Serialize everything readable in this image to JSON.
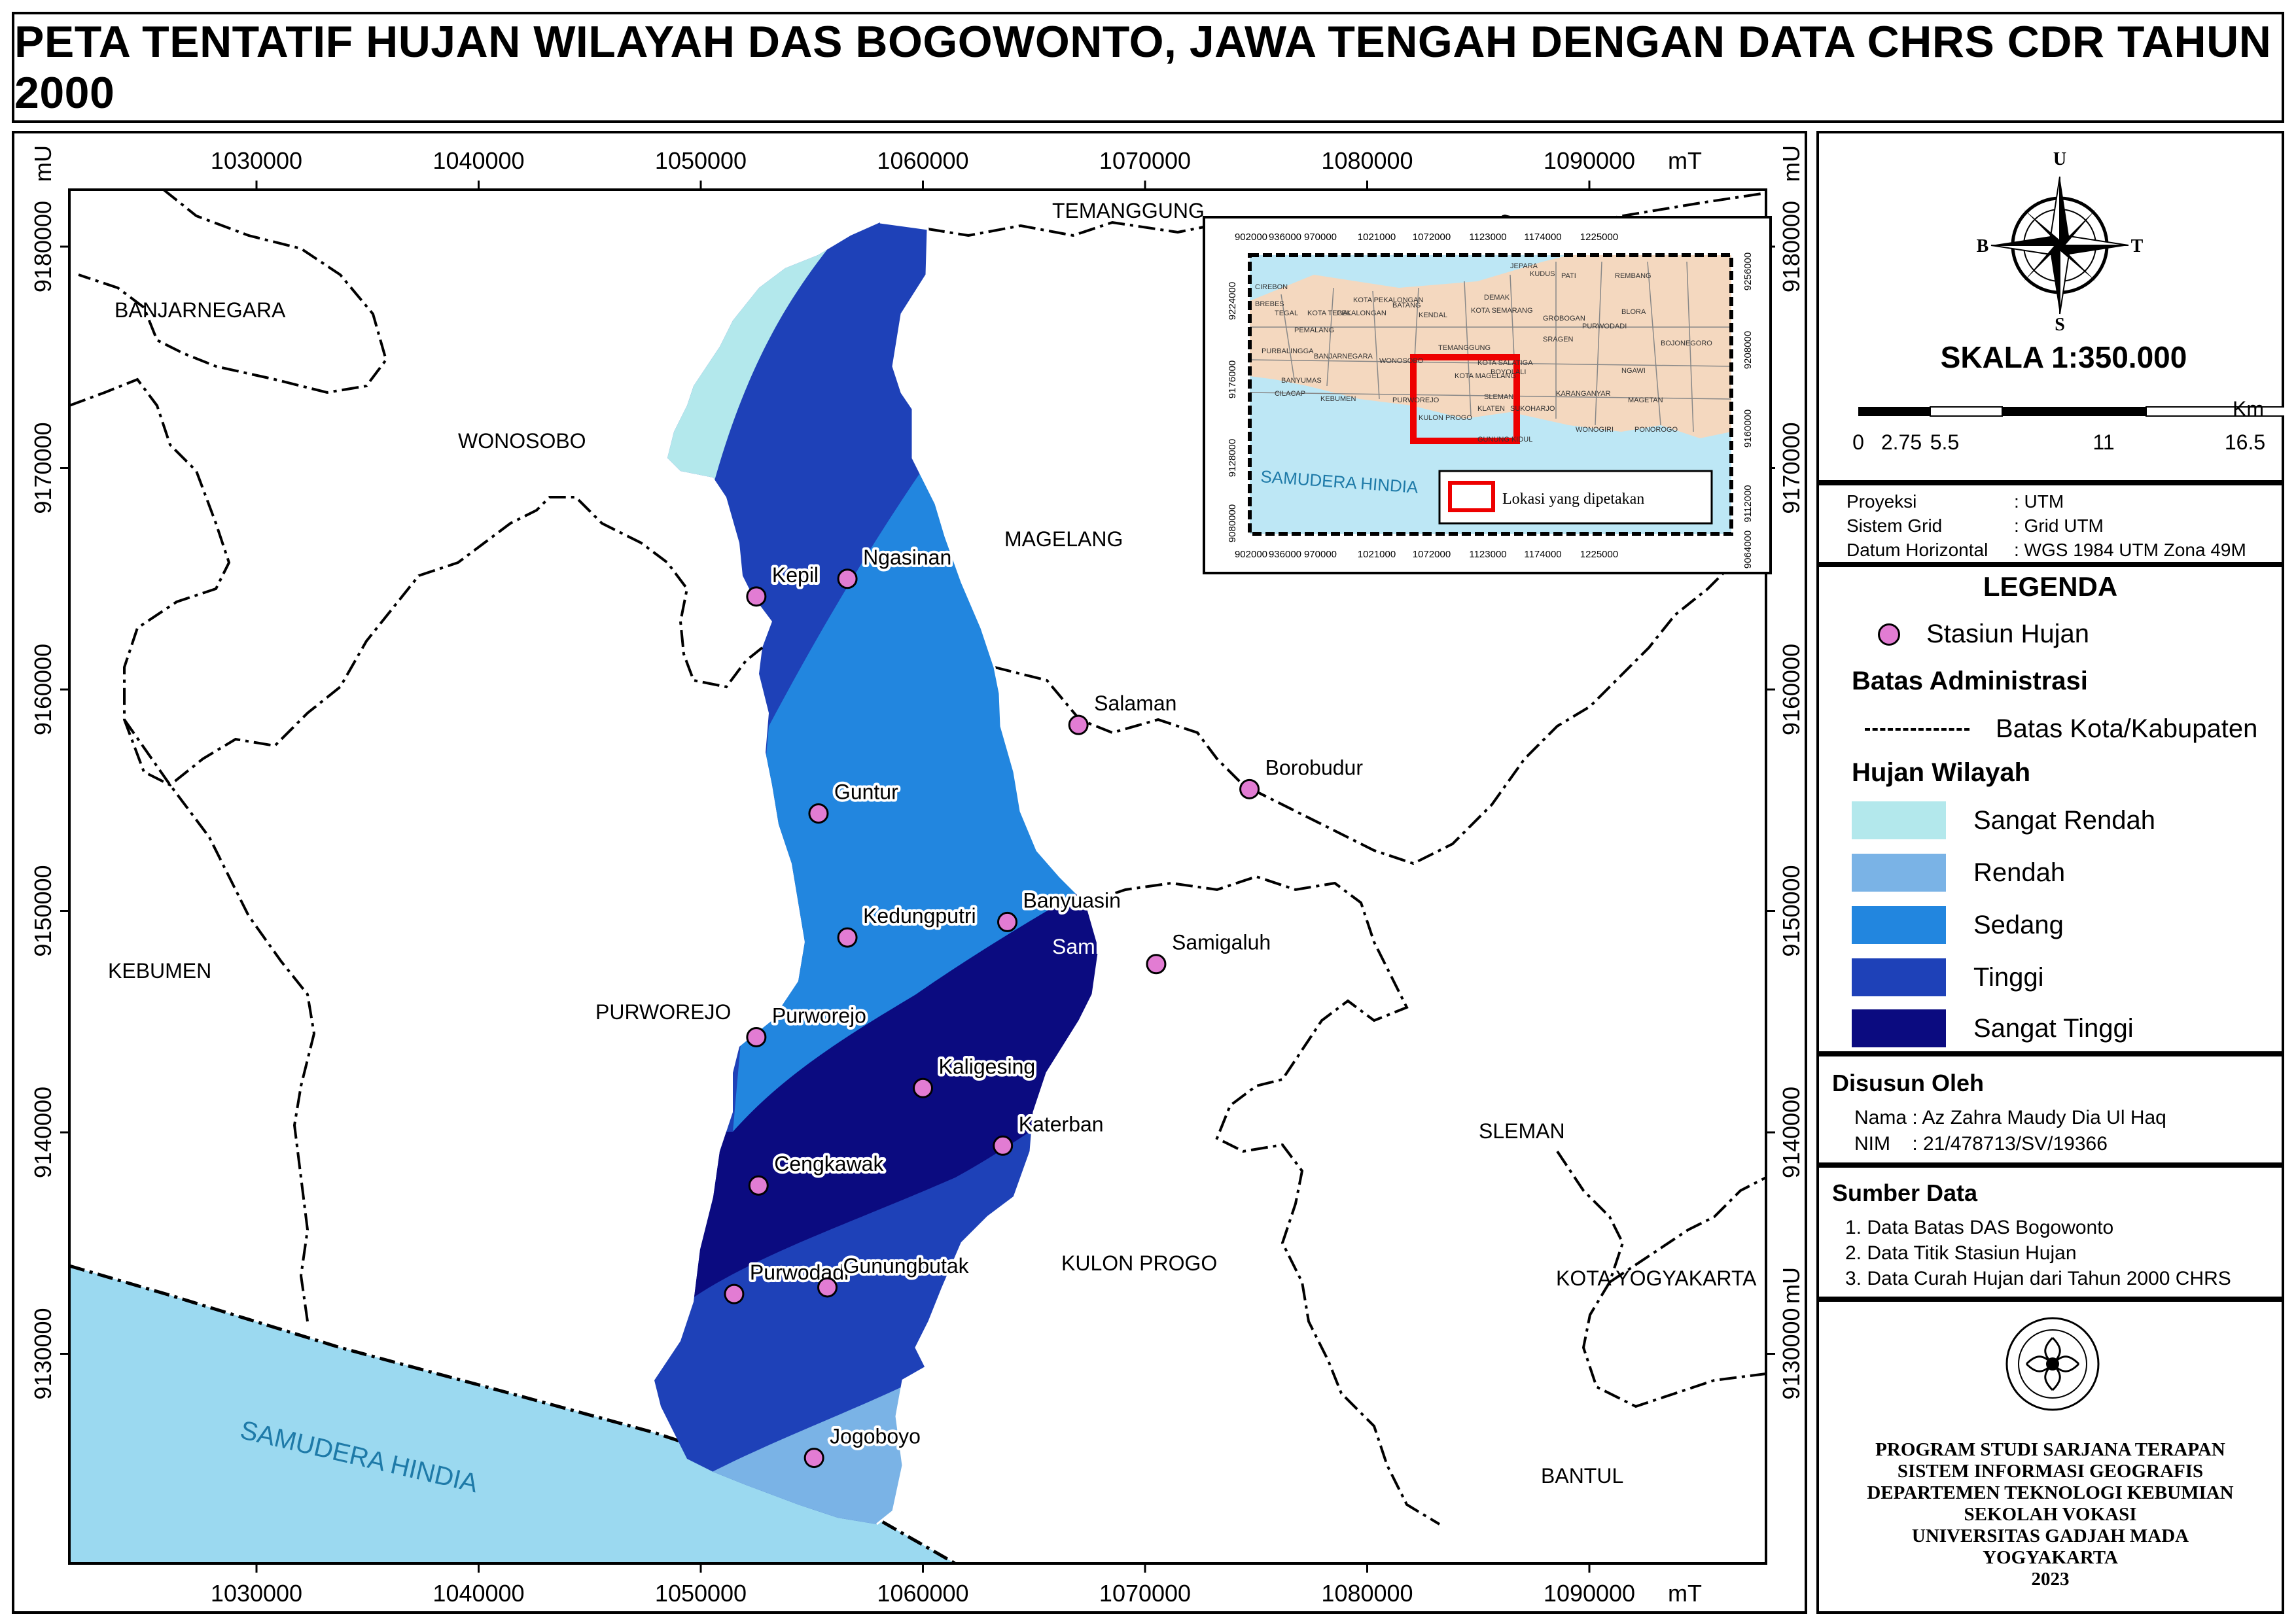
{
  "title": "PETA TENTATIF HUJAN WILAYAH DAS BOGOWONTO, JAWA TENGAH DENGAN DATA CHRS CDR TAHUN 2000",
  "map": {
    "x_ticks": [
      "1030000",
      "1040000",
      "1050000",
      "1060000",
      "1070000",
      "1080000",
      "1090000"
    ],
    "x_unit": "mT",
    "y_ticks": [
      "9180000",
      "9170000",
      "9160000",
      "9150000",
      "9140000",
      "9130000"
    ],
    "y_unit": "mU",
    "regions": {
      "temanggung": "TEMANGGUNG",
      "banjarnegara": "BANJARNEGARA",
      "wonosobo": "WONOSOBO",
      "magelang": "MAGELANG",
      "kebumen": "KEBUMEN",
      "purworejo": "PURWOREJO",
      "sleman": "SLEMAN",
      "kulon_progo": "KULON PROGO",
      "kota_yogyakarta": "KOTA YOGYAKARTA",
      "bantul": "BANTUL",
      "samudera_hindia": "SAMUDERA HINDIA"
    },
    "stations": [
      {
        "name": "Kepil",
        "x": 1052500,
        "y": 9164200
      },
      {
        "name": "Ngasinan",
        "x": 1056600,
        "y": 9165000
      },
      {
        "name": "Salaman",
        "x": 1067000,
        "y": 9158400
      },
      {
        "name": "Borobudur",
        "x": 1074700,
        "y": 9155500
      },
      {
        "name": "Guntur",
        "x": 1055300,
        "y": 9154400
      },
      {
        "name": "Kedungputri",
        "x": 1056600,
        "y": 9148800
      },
      {
        "name": "Banyuasin",
        "x": 1063800,
        "y": 9149500
      },
      {
        "name": "Samigaluh",
        "x": 1070500,
        "y": 9147600
      },
      {
        "name": "Purworejo",
        "x": 1052500,
        "y": 9144300
      },
      {
        "name": "Kaligesing",
        "x": 1060000,
        "y": 9142000
      },
      {
        "name": "Katerban",
        "x": 1063600,
        "y": 9139400
      },
      {
        "name": "Cengkawak",
        "x": 1052600,
        "y": 9137600
      },
      {
        "name": "Purwodadi",
        "x": 1051500,
        "y": 9132700
      },
      {
        "name": "Gunungbutak",
        "x": 1055700,
        "y": 9133000
      },
      {
        "name": "Jogoboyo",
        "x": 1055100,
        "y": 9125300
      }
    ],
    "samigaluh_extra_label": "Samigaluh",
    "colors": {
      "sangat_rendah": "#b3e8ec",
      "rendah": "#7ab3e6",
      "sedang": "#2286df",
      "tinggi": "#1e41b8",
      "sangat_tinggi": "#0b0b80",
      "sea": "#9bd9f0",
      "station": "#e27cd3"
    }
  },
  "inset": {
    "x_ticks": [
      "902000",
      "936000",
      "970000",
      "1021000",
      "1072000",
      "1123000",
      "1174000",
      "1225000"
    ],
    "y_ticks_left": [
      "9224000",
      "9176000",
      "9128000",
      "9080000"
    ],
    "y_ticks_right": [
      "9256000",
      "9208000",
      "9160000",
      "9112000",
      "9064000"
    ],
    "sea_label": "SAMUDERA HINDIA",
    "legend_label": "Lokasi yang dipetakan",
    "place_labels": [
      "CIREBON",
      "BREBES",
      "TEGAL",
      "KOTA TEGAL",
      "PEMALANG",
      "PEKALONGAN",
      "BATANG",
      "KENDAL",
      "KOTA SEMARANG",
      "DEMAK",
      "KUDUS",
      "JEPARA",
      "PATI",
      "REMBANG",
      "BLORA",
      "GROBOGAN",
      "PURWODADI",
      "KOTA PEKALONGAN",
      "PURBALINGGA",
      "BANJARNEGARA",
      "WONOSOBO",
      "TEMANGGUNG",
      "KOTA SALATIGA",
      "BOYOLALI",
      "SRAGEN",
      "NGAWI",
      "BANYUMAS",
      "KOTA MAGELANG",
      "KARANGANYAR",
      "MAGETAN",
      "KEBUMEN",
      "PURWOREJO",
      "KLATEN",
      "SUKOHARJO",
      "WONOGIRI",
      "PONOROGO",
      "CILACAP",
      "KULON PROGO",
      "SLEMAN",
      "GUNUNG KIDUL",
      "BOJONEGORO"
    ]
  },
  "compass": {
    "n": "U",
    "w": "B",
    "e": "T",
    "s": "S"
  },
  "scale": {
    "text": "SKALA 1:350.000",
    "labels": [
      "0",
      "2.75",
      "5.5",
      "11",
      "16.5"
    ],
    "unit": "Km"
  },
  "projection": [
    {
      "key": "Proyeksi",
      "value": ": UTM"
    },
    {
      "key": "Sistem Grid",
      "value": ": Grid UTM"
    },
    {
      "key": "Datum Horizontal",
      "value": ": WGS 1984 UTM Zona 49M"
    }
  ],
  "legend": {
    "title": "LEGENDA",
    "station": "Stasiun Hujan",
    "admin_heading": "Batas Administrasi",
    "admin_line": "Batas Kota/Kabupaten",
    "rain_heading": "Hujan Wilayah",
    "classes": [
      {
        "label": "Sangat Rendah",
        "color": "#b3e8ec"
      },
      {
        "label": "Rendah",
        "color": "#7ab3e6"
      },
      {
        "label": "Sedang",
        "color": "#2286df"
      },
      {
        "label": "Tinggi",
        "color": "#1e41b8"
      },
      {
        "label": "Sangat Tinggi",
        "color": "#0b0b80"
      }
    ]
  },
  "author": {
    "heading": "Disusun Oleh",
    "name": "Nama : Az Zahra Maudy Dia Ul Haq",
    "nim": "NIM    : 21/478713/SV/19366"
  },
  "sources": {
    "heading": "Sumber Data",
    "items": [
      "1. Data Batas DAS Bogowonto",
      "2. Data Titik Stasiun Hujan",
      "3. Data Curah Hujan dari Tahun 2000 CHRS"
    ]
  },
  "institution": [
    "PROGRAM STUDI SARJANA TERAPAN",
    "SISTEM INFORMASI GEOGRAFIS",
    "DEPARTEMEN TEKNOLOGI KEBUMIAN",
    "SEKOLAH VOKASI",
    "UNIVERSITAS GADJAH MADA",
    "YOGYAKARTA",
    "2023"
  ]
}
